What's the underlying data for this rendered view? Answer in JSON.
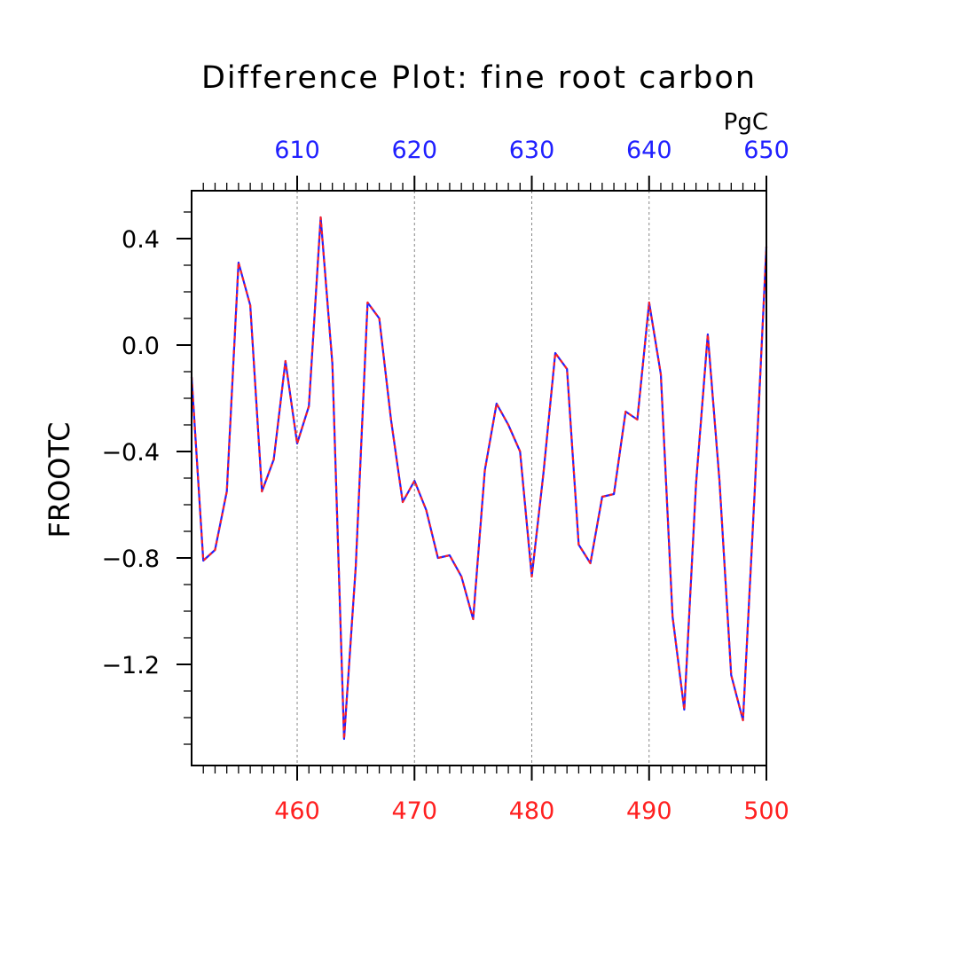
{
  "chart_data": {
    "type": "line",
    "title": "Difference Plot: fine root carbon",
    "ylabel": "FROOTC",
    "top_axis_unit": "PgC",
    "xlim": [
      451,
      500
    ],
    "top_xlim": [
      601,
      650
    ],
    "ylim": [
      -1.58,
      0.58
    ],
    "grid": "vertical dashed lines at major top ticks",
    "x_ticks": [
      "460",
      "470",
      "480",
      "490",
      "500"
    ],
    "x_tick_values": [
      460,
      470,
      480,
      490,
      500
    ],
    "top_ticks": [
      "610",
      "620",
      "630",
      "640",
      "650"
    ],
    "top_tick_values": [
      610,
      620,
      630,
      640,
      650
    ],
    "y_ticks": [
      "0.4",
      "0.0",
      "−0.4",
      "−0.8",
      "−1.2"
    ],
    "y_tick_values": [
      0.4,
      0.0,
      -0.4,
      -0.8,
      -1.2
    ],
    "colors": {
      "bottom_axis": "#ff2020",
      "top_axis": "#2020ff",
      "series_dash": "#ff2020",
      "series_base": "#2020ff"
    },
    "series": [
      {
        "x": [
          451,
          452,
          453,
          454,
          455,
          456,
          457,
          458,
          459,
          460,
          461,
          462,
          463,
          464,
          465,
          466,
          467,
          468,
          469,
          470,
          471,
          472,
          473,
          474,
          475,
          476,
          477,
          478,
          479,
          480,
          481,
          482,
          483,
          484,
          485,
          486,
          487,
          488,
          489,
          490,
          491,
          492,
          493,
          494,
          495,
          496,
          497,
          498,
          499,
          500
        ],
        "values": [
          -0.12,
          -0.81,
          -0.77,
          -0.55,
          0.31,
          0.15,
          -0.55,
          -0.43,
          -0.06,
          -0.37,
          -0.23,
          0.48,
          -0.07,
          -1.48,
          -0.83,
          0.16,
          0.1,
          -0.28,
          -0.59,
          -0.51,
          -0.62,
          -0.8,
          -0.79,
          -0.87,
          -1.03,
          -0.47,
          -0.22,
          -0.3,
          -0.4,
          -0.87,
          -0.48,
          -0.03,
          -0.09,
          -0.75,
          -0.82,
          -0.57,
          -0.56,
          -0.25,
          -0.28,
          0.16,
          -0.11,
          -1.02,
          -1.37,
          -0.52,
          0.04,
          -0.51,
          -1.24,
          -1.41,
          -0.55,
          0.37
        ]
      }
    ]
  }
}
